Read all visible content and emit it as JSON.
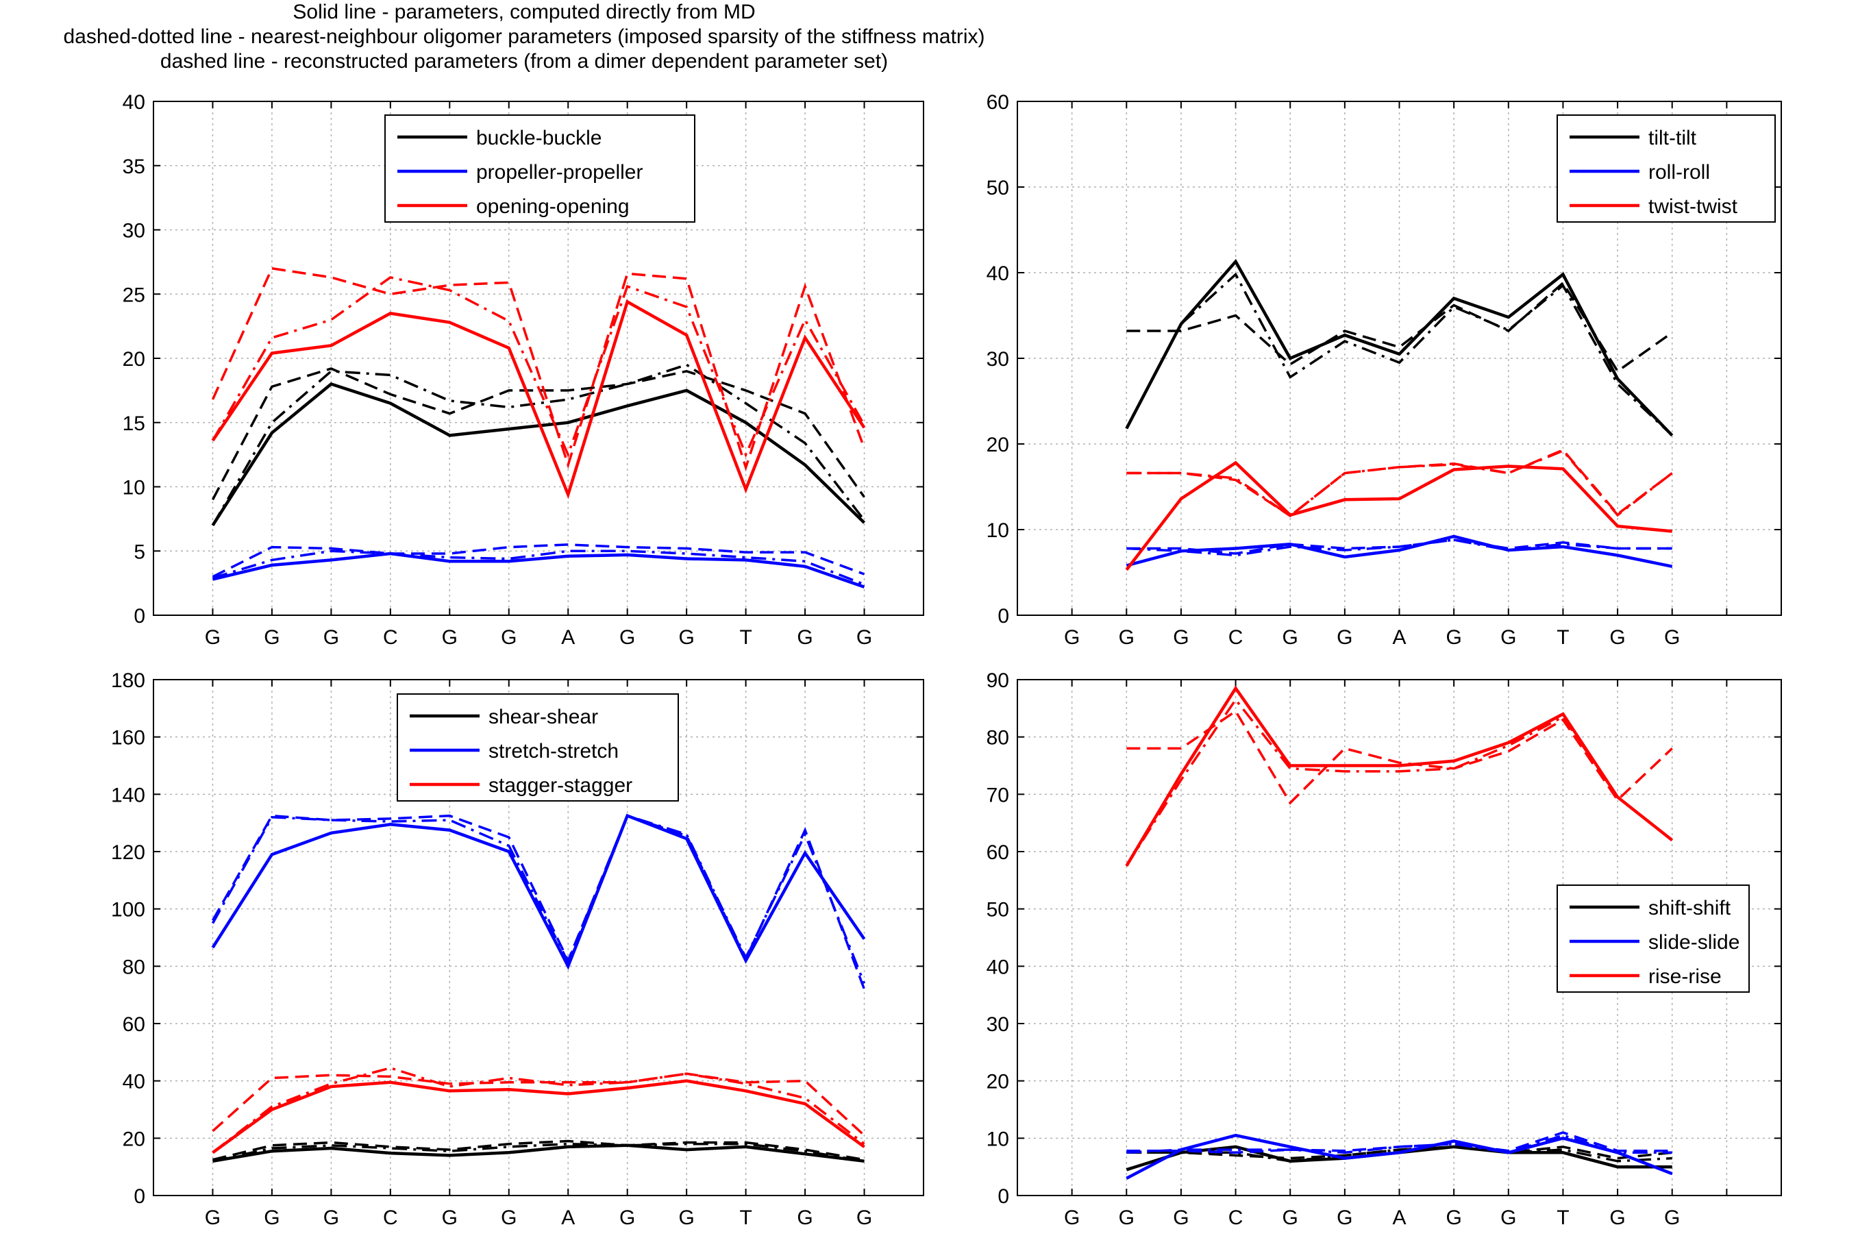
{
  "header": {
    "line1": "Solid line - parameters, computed directly from MD",
    "line2": "dashed-dotted line - nearest-neighbour oligomer parameters (imposed sparsity of the stiffness matrix)",
    "line3": "dashed line - reconstructed parameters (from a dimer dependent parameter set)"
  },
  "line_styles": [
    "solid",
    "dash-dot",
    "dashed"
  ],
  "colors": {
    "black": "#000000",
    "blue": "#0000ff",
    "red": "#ff0000",
    "grid": "#b0b0b0"
  },
  "chart_data": [
    {
      "type": "line",
      "position": "top-left",
      "categories": [
        "G",
        "G",
        "G",
        "C",
        "G",
        "G",
        "A",
        "G",
        "G",
        "T",
        "G",
        "G"
      ],
      "ylim": [
        0,
        40
      ],
      "yticks": [
        0,
        5,
        10,
        15,
        20,
        25,
        30,
        35,
        40
      ],
      "grid": true,
      "legend": "top-center",
      "series": [
        {
          "name": "buckle-buckle",
          "color": "#000000",
          "solid": [
            7.0,
            14.2,
            18.0,
            16.5,
            14.0,
            14.5,
            15.0,
            16.3,
            17.5,
            15.0,
            11.7,
            7.2
          ],
          "dashdot": [
            7.0,
            15.0,
            19.0,
            18.7,
            16.7,
            16.2,
            16.8,
            18.0,
            19.5,
            16.5,
            13.4,
            7.4
          ],
          "dashed": [
            9.0,
            17.8,
            19.2,
            17.2,
            15.7,
            17.5,
            17.5,
            18.0,
            19.0,
            17.5,
            15.7,
            9.2
          ]
        },
        {
          "name": "propeller-propeller",
          "color": "#0000ff",
          "solid": [
            2.8,
            3.9,
            4.3,
            4.8,
            4.2,
            4.2,
            4.6,
            4.7,
            4.4,
            4.3,
            3.8,
            2.2
          ],
          "dashdot": [
            2.9,
            4.3,
            5.0,
            4.8,
            4.5,
            4.4,
            5.0,
            5.0,
            4.8,
            4.5,
            4.2,
            2.4
          ],
          "dashed": [
            3.0,
            5.3,
            5.2,
            4.8,
            4.8,
            5.3,
            5.5,
            5.3,
            5.2,
            4.9,
            4.9,
            3.2
          ]
        },
        {
          "name": "opening-opening",
          "color": "#ff0000",
          "solid": [
            13.6,
            20.4,
            21.0,
            23.5,
            22.8,
            20.8,
            9.4,
            24.4,
            21.8,
            9.8,
            21.6,
            14.6
          ],
          "dashdot": [
            13.6,
            21.6,
            23.0,
            26.3,
            25.3,
            22.9,
            12.5,
            25.6,
            24.0,
            12.5,
            23.0,
            14.8
          ],
          "dashed": [
            16.8,
            27.0,
            26.3,
            25.0,
            25.7,
            25.9,
            11.7,
            26.6,
            26.2,
            11.5,
            25.6,
            13.0
          ]
        }
      ]
    },
    {
      "type": "line",
      "position": "top-right",
      "categories": [
        "G",
        "G",
        "G",
        "C",
        "G",
        "G",
        "A",
        "G",
        "G",
        "T",
        "G",
        "G"
      ],
      "x_offset": 1,
      "ylim": [
        0,
        60
      ],
      "yticks": [
        0,
        10,
        20,
        30,
        40,
        50,
        60
      ],
      "grid": true,
      "legend": "top-right",
      "series": [
        {
          "name": "tilt-tilt",
          "color": "#000000",
          "solid": [
            21.8,
            34.0,
            41.3,
            30.0,
            32.7,
            30.5,
            37.0,
            34.8,
            39.8,
            27.6,
            21.0
          ],
          "dashdot": [
            21.8,
            34.0,
            39.8,
            27.8,
            32.0,
            29.5,
            36.0,
            33.3,
            38.5,
            27.0,
            21.0
          ],
          "dashed": [
            33.2,
            33.2,
            35.0,
            29.3,
            33.2,
            31.3,
            36.2,
            33.2,
            38.8,
            28.5,
            33.0
          ]
        },
        {
          "name": "roll-roll",
          "color": "#0000ff",
          "solid": [
            5.8,
            7.5,
            7.8,
            8.3,
            6.8,
            7.6,
            9.2,
            7.6,
            8.0,
            7.0,
            5.7
          ],
          "dashdot": [
            7.8,
            7.5,
            7.0,
            8.0,
            7.6,
            8.0,
            8.8,
            7.6,
            8.3,
            7.8,
            7.8
          ],
          "dashed": [
            7.8,
            7.8,
            7.2,
            8.3,
            7.8,
            8.0,
            8.8,
            7.8,
            8.5,
            7.8,
            7.8
          ]
        },
        {
          "name": "twist-twist",
          "color": "#ff0000",
          "solid": [
            5.3,
            13.6,
            17.8,
            11.7,
            13.5,
            13.6,
            17.0,
            17.4,
            17.1,
            10.4,
            9.8
          ],
          "dashdot": [
            16.6,
            16.6,
            16.0,
            11.6,
            16.6,
            17.3,
            17.6,
            16.6,
            19.2,
            11.7,
            16.6
          ],
          "dashed": [
            16.6,
            16.6,
            15.8,
            11.6,
            16.6,
            17.3,
            17.7,
            16.6,
            19.3,
            11.8,
            16.6
          ]
        }
      ]
    },
    {
      "type": "line",
      "position": "bottom-left",
      "categories": [
        "G",
        "G",
        "G",
        "C",
        "G",
        "G",
        "A",
        "G",
        "G",
        "T",
        "G",
        "G"
      ],
      "ylim": [
        0,
        180
      ],
      "yticks": [
        0,
        20,
        40,
        60,
        80,
        100,
        120,
        140,
        160,
        180
      ],
      "grid": true,
      "legend": "top-center",
      "series": [
        {
          "name": "shear-shear",
          "color": "#000000",
          "solid": [
            12.0,
            15.5,
            16.5,
            14.8,
            14.0,
            15.0,
            17.0,
            17.5,
            16.0,
            17.0,
            14.5,
            12.0
          ],
          "dashdot": [
            12.0,
            16.5,
            17.5,
            16.5,
            15.5,
            17.0,
            18.0,
            17.5,
            18.0,
            18.0,
            15.5,
            12.0
          ],
          "dashed": [
            12.5,
            17.5,
            18.5,
            17.0,
            16.0,
            18.0,
            19.0,
            17.5,
            18.5,
            18.5,
            16.0,
            12.5
          ]
        },
        {
          "name": "stretch-stretch",
          "color": "#0000ff",
          "solid": [
            86.5,
            119.0,
            126.5,
            129.5,
            127.5,
            120.0,
            80.0,
            132.5,
            124.5,
            82.0,
            119.5,
            89.5
          ],
          "dashdot": [
            95.0,
            132.0,
            131.0,
            130.5,
            131.0,
            122.0,
            81.5,
            132.5,
            126.0,
            83.0,
            126.0,
            74.0
          ],
          "dashed": [
            96.0,
            132.5,
            131.0,
            131.5,
            132.5,
            125.0,
            82.0,
            132.5,
            125.5,
            82.5,
            127.5,
            72.0
          ]
        },
        {
          "name": "stagger-stagger",
          "color": "#ff0000",
          "solid": [
            15.0,
            30.0,
            38.0,
            39.5,
            36.5,
            37.0,
            35.5,
            37.5,
            40.0,
            36.5,
            32.0,
            17.0
          ],
          "dashdot": [
            15.0,
            31.0,
            39.0,
            44.5,
            38.0,
            41.0,
            38.5,
            39.5,
            42.5,
            39.0,
            34.0,
            18.0
          ],
          "dashed": [
            22.5,
            41.0,
            42.0,
            41.5,
            39.0,
            39.5,
            39.5,
            39.5,
            42.5,
            39.5,
            40.0,
            21.0
          ]
        }
      ]
    },
    {
      "type": "line",
      "position": "bottom-right",
      "categories": [
        "G",
        "G",
        "G",
        "C",
        "G",
        "G",
        "A",
        "G",
        "G",
        "T",
        "G",
        "G"
      ],
      "x_offset": 1,
      "ylim": [
        0,
        90
      ],
      "yticks": [
        0,
        10,
        20,
        30,
        40,
        50,
        60,
        70,
        80,
        90
      ],
      "grid": true,
      "legend": "right",
      "series": [
        {
          "name": "shift-shift",
          "color": "#000000",
          "solid": [
            4.5,
            7.5,
            8.5,
            6.0,
            6.5,
            7.5,
            8.5,
            7.5,
            7.5,
            5.0,
            5.0
          ],
          "dashdot": [
            7.5,
            7.5,
            7.5,
            6.0,
            7.0,
            8.0,
            8.5,
            7.5,
            8.0,
            6.0,
            6.5
          ],
          "dashed": [
            7.5,
            7.5,
            7.0,
            6.5,
            7.0,
            8.0,
            8.5,
            7.5,
            8.5,
            6.5,
            7.5
          ]
        },
        {
          "name": "slide-slide",
          "color": "#0000ff",
          "solid": [
            3.0,
            8.0,
            10.5,
            8.5,
            6.5,
            7.5,
            9.5,
            7.5,
            10.0,
            7.5,
            3.8
          ],
          "dashdot": [
            7.5,
            8.0,
            8.0,
            8.0,
            7.5,
            8.5,
            9.0,
            7.5,
            10.5,
            7.5,
            7.5
          ],
          "dashed": [
            7.8,
            7.8,
            7.5,
            8.0,
            7.8,
            8.5,
            9.0,
            7.8,
            11.0,
            7.8,
            7.8
          ]
        },
        {
          "name": "rise-rise",
          "color": "#ff0000",
          "solid": [
            57.5,
            73.5,
            88.5,
            75.0,
            75.0,
            75.0,
            75.8,
            79.0,
            84.0,
            69.5,
            62.0
          ],
          "dashdot": [
            57.5,
            72.5,
            86.5,
            74.5,
            74.0,
            74.0,
            74.5,
            78.5,
            83.5,
            69.5,
            62.0
          ],
          "dashed": [
            78.0,
            78.0,
            84.5,
            68.5,
            78.0,
            75.5,
            74.5,
            77.5,
            83.0,
            69.0,
            78.0
          ]
        }
      ]
    }
  ]
}
